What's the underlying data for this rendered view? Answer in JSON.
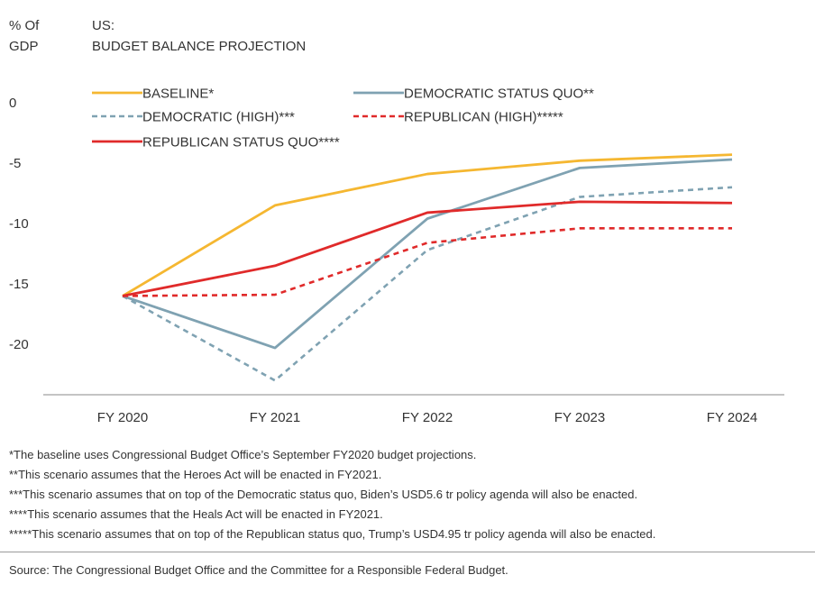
{
  "chart_data": {
    "type": "line",
    "ylabel": "% Of GDP",
    "ylabel_lines": [
      "% Of",
      "GDP"
    ],
    "title": "BUDGET BALANCE PROJECTION",
    "title_lines": [
      "US:",
      "BUDGET BALANCE PROJECTION"
    ],
    "categories": [
      "FY 2020",
      "FY 2021",
      "FY 2022",
      "FY 2023",
      "FY 2024"
    ],
    "yticks": [
      "0",
      "-5",
      "-10",
      "-15",
      "-20"
    ],
    "ylim": [
      -24,
      0
    ],
    "grid": false,
    "legend_position": "top",
    "series": [
      {
        "name": "BASELINE*",
        "color": "#f5b731",
        "style": "solid",
        "values": [
          -16.0,
          -8.5,
          -5.9,
          -4.8,
          -4.3
        ]
      },
      {
        "name": "DEMOCRATIC STATUS QUO**",
        "color": "#7fa2b2",
        "style": "solid",
        "values": [
          -16.0,
          -20.3,
          -9.6,
          -5.4,
          -4.7
        ]
      },
      {
        "name": "DEMOCRATIC (HIGH)***",
        "color": "#7fa2b2",
        "style": "dashed",
        "values": [
          -16.0,
          -23.0,
          -12.2,
          -7.8,
          -7.0
        ]
      },
      {
        "name": "REPUBLICAN (HIGH)*****",
        "color": "#e02a2a",
        "style": "dashed",
        "values": [
          -16.0,
          -15.9,
          -11.6,
          -10.4,
          -10.4
        ]
      },
      {
        "name": "REPUBLICAN STATUS QUO****",
        "color": "#e02a2a",
        "style": "solid",
        "values": [
          -16.0,
          -13.5,
          -9.1,
          -8.2,
          -8.3
        ]
      }
    ]
  },
  "footnotes": [
    "*The baseline uses Congressional Budget Office’s September FY2020 budget projections.",
    "**This scenario assumes that the Heroes Act will be enacted in FY2021.",
    "***This scenario assumes that on top of the Democratic status quo, Biden’s USD5.6 tr policy agenda will also be enacted.",
    "****This scenario assumes that the Heals Act will be enacted in FY2021.",
    "*****This scenario assumes that on top of the Republican status quo, Trump’s USD4.95 tr policy agenda will also be enacted."
  ],
  "source": "Source: The Congressional Budget Office and the Committee for a Responsible Federal Budget."
}
